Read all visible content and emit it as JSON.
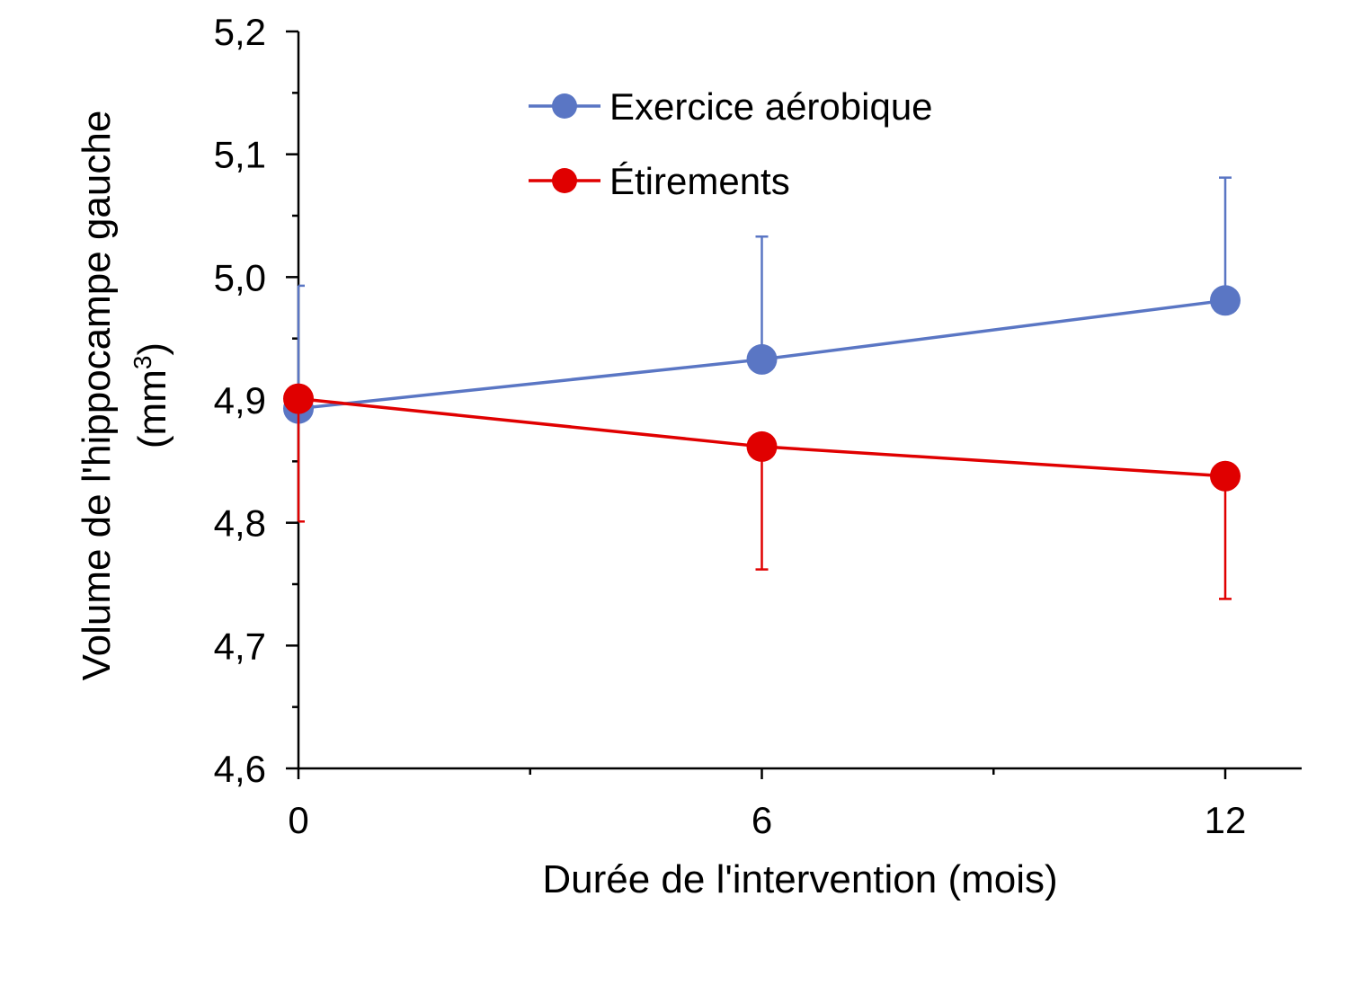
{
  "chart_data": {
    "type": "line",
    "title": "",
    "xlabel": "Durée de l'intervention (mois)",
    "ylabel": "Volume de l'hippocampe gauche",
    "ylabel_unit": "(mm",
    "ylabel_unit_sup": "3",
    "ylabel_unit_close": ")",
    "x": [
      0,
      6,
      12
    ],
    "xlim": [
      0,
      13.65
    ],
    "ylim": [
      4.6,
      5.2
    ],
    "x_ticks": [
      0,
      6,
      12
    ],
    "x_tick_labels": [
      "0",
      "6",
      "12"
    ],
    "x_minor_ticks": [
      3,
      9
    ],
    "y_ticks": [
      4.6,
      4.7,
      4.8,
      4.9,
      5.0,
      5.1,
      5.2
    ],
    "y_tick_labels": [
      "4,6",
      "4,7",
      "4,8",
      "4,9",
      "5,0",
      "5,1",
      "5,2"
    ],
    "grid": false,
    "legend_position": "top-center",
    "series": [
      {
        "name": "Exercice aérobique",
        "color": "#5A76C4",
        "values": [
          4.893,
          4.933,
          4.981
        ],
        "error": [
          0.1,
          0.1,
          0.1
        ],
        "error_direction": "up"
      },
      {
        "name": "Étirements",
        "color": "#E00000",
        "values": [
          4.901,
          4.862,
          4.838
        ],
        "error": [
          0.1,
          0.1,
          0.1
        ],
        "error_direction": "down"
      }
    ]
  }
}
